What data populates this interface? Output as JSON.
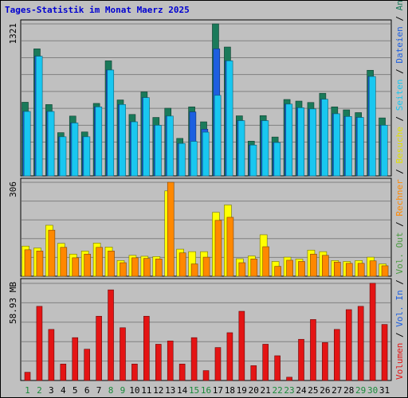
{
  "chart_data": {
    "type": "bar",
    "title": "Tages-Statistik im Monat Maerz 2025",
    "categories": [
      "1",
      "2",
      "3",
      "4",
      "5",
      "6",
      "7",
      "8",
      "9",
      "10",
      "11",
      "12",
      "13",
      "14",
      "15",
      "16",
      "17",
      "18",
      "19",
      "20",
      "21",
      "22",
      "23",
      "24",
      "25",
      "26",
      "27",
      "28",
      "29",
      "30",
      "31"
    ],
    "weekend_days": [
      "1",
      "2",
      "8",
      "9",
      "15",
      "16",
      "22",
      "23",
      "29",
      "30"
    ],
    "panels": [
      {
        "name": "top",
        "ymax_label": "1321",
        "ymax": 1321,
        "series": [
          {
            "name": "Anfragen",
            "color": "#1a7a5a",
            "values": [
              640,
              1104,
              620,
              376,
              520,
              382,
              630,
              1000,
              660,
              534,
              730,
              508,
              588,
              326,
              600,
              470,
              1321,
              1120,
              522,
              302,
              524,
              338,
              664,
              650,
              638,
              718,
              600,
              574,
              550,
              918,
              504
            ]
          },
          {
            "name": "Dateien",
            "color": "#1d5fe0",
            "values": [
              560,
              1040,
              560,
              340,
              460,
              340,
              600,
              920,
              620,
              470,
              680,
              440,
              520,
              282,
              556,
              406,
              1104,
              1000,
              480,
              268,
              480,
              290,
              624,
              592,
              582,
              666,
              540,
              516,
              508,
              864,
              440
            ]
          },
          {
            "name": "Seiten",
            "color": "#19c7f0",
            "values": [
              560,
              1040,
              560,
              340,
              460,
              340,
              600,
              920,
              620,
              470,
              680,
              440,
              520,
              282,
              300,
              380,
              700,
              1000,
              480,
              268,
              480,
              290,
              624,
              592,
              582,
              666,
              540,
              516,
              508,
              864,
              440
            ]
          }
        ]
      },
      {
        "name": "middle",
        "ymax_label": "306",
        "ymax": 306,
        "series": [
          {
            "name": "Besuche",
            "color": "#ffff00",
            "values": [
              98,
              92,
              166,
              107,
              72,
              82,
              108,
              95,
              51,
              68,
              65,
              64,
              278,
              88,
              80,
              80,
              208,
              232,
              57,
              66,
              135,
              48,
              62,
              56,
              85,
              80,
              51,
              48,
              51,
              62,
              40
            ]
          },
          {
            "name": "Rechner",
            "color": "#ff8800",
            "values": [
              86,
              82,
              150,
              94,
              60,
              72,
              94,
              82,
              44,
              60,
              58,
              56,
              306,
              76,
              40,
              62,
              182,
              192,
              44,
              56,
              96,
              32,
              52,
              48,
              72,
              68,
              46,
              42,
              42,
              50,
              34
            ]
          }
        ]
      },
      {
        "name": "bottom",
        "ymax_label": "58.93 MB",
        "ymax": 58.93,
        "series": [
          {
            "name": "Volumen",
            "color": "#e41414",
            "values": [
              5,
              45,
              31,
              10,
              26,
              19,
              39,
              55,
              32,
              10,
              39,
              22,
              24,
              10,
              26,
              6,
              20,
              29,
              42,
              9,
              22,
              15,
              2,
              25,
              37,
              23,
              31,
              43,
              45,
              59,
              34
            ]
          }
        ]
      }
    ],
    "right_legend": [
      {
        "text": "Anfragen",
        "color": "#1a7a5a"
      },
      {
        "text": "Dateien",
        "color": "#1d5fe0"
      },
      {
        "text": "Seiten",
        "color": "#19c7f0"
      },
      {
        "text": "Besuche",
        "color": "#e0e000"
      },
      {
        "text": "Rechner",
        "color": "#ff8800"
      },
      {
        "text": "Vol. Out",
        "color": "#4a9a40"
      },
      {
        "text": "Vol. In",
        "color": "#1d5fe0"
      },
      {
        "text": "Volumen",
        "color": "#e41414"
      }
    ],
    "colors": {
      "background": "#c0c0c0",
      "plot_bg": "#c0c0c0",
      "gridline": "#808080",
      "title": "#0000d0",
      "weekend_label": "#1a8a3a",
      "weekday_label": "#000000"
    }
  }
}
